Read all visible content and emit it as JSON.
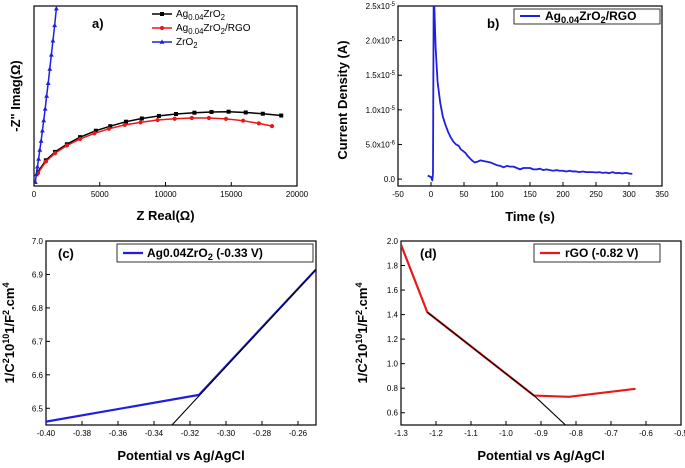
{
  "chart_data": [
    {
      "id": "a",
      "type": "line",
      "panel_label": "a)",
      "xlabel": "Z Real(Ω)",
      "ylabel": "-Z\" Imag(Ω)",
      "xlim": [
        0,
        20000
      ],
      "ylim": [
        0,
        14000
      ],
      "xticks": [
        0,
        5000,
        10000,
        15000,
        20000
      ],
      "xtick_labels": [
        "0",
        "5000",
        "10000",
        "15000",
        "20000"
      ],
      "legend": "top-right",
      "series": [
        {
          "name": "Ag0.04ZrO2",
          "base": "Ag",
          "sub": "0.04",
          "mid": "ZrO",
          "sub2": "2",
          "tail": "",
          "color": "#000000",
          "marker": "square",
          "points": [
            [
              300,
              1100
            ],
            [
              900,
              2000
            ],
            [
              1600,
              2650
            ],
            [
              2500,
              3250
            ],
            [
              3500,
              3800
            ],
            [
              4700,
              4300
            ],
            [
              5800,
              4650
            ],
            [
              7000,
              5000
            ],
            [
              8200,
              5250
            ],
            [
              9500,
              5450
            ],
            [
              10800,
              5600
            ],
            [
              12200,
              5700
            ],
            [
              13500,
              5760
            ],
            [
              14800,
              5780
            ],
            [
              16100,
              5720
            ],
            [
              17400,
              5620
            ],
            [
              18800,
              5480
            ]
          ]
        },
        {
          "name": "Ag0.04ZrO2/RGO",
          "base": "Ag",
          "sub": "0.04",
          "mid": "ZrO",
          "sub2": "2",
          "tail": "/RGO",
          "color": "#e8191b",
          "marker": "circle",
          "points": [
            [
              300,
              1000
            ],
            [
              900,
              1900
            ],
            [
              1600,
              2550
            ],
            [
              2500,
              3150
            ],
            [
              3500,
              3650
            ],
            [
              4600,
              4100
            ],
            [
              5700,
              4450
            ],
            [
              6900,
              4750
            ],
            [
              8100,
              4950
            ],
            [
              9400,
              5130
            ],
            [
              10700,
              5230
            ],
            [
              12000,
              5290
            ],
            [
              13300,
              5290
            ],
            [
              14600,
              5220
            ],
            [
              15900,
              5080
            ],
            [
              17100,
              4870
            ],
            [
              18100,
              4660
            ]
          ]
        },
        {
          "name": "ZrO2",
          "base": "ZrO",
          "sub": "2",
          "mid": "",
          "sub2": "",
          "tail": "",
          "color": "#1f1fe0",
          "marker": "triangle",
          "points": [
            [
              100,
              300
            ],
            [
              180,
              900
            ],
            [
              260,
              1500
            ],
            [
              350,
              2100
            ],
            [
              440,
              2800
            ],
            [
              540,
              3500
            ],
            [
              640,
              4300
            ],
            [
              740,
              5100
            ],
            [
              850,
              6000
            ],
            [
              960,
              7000
            ],
            [
              1080,
              8000
            ],
            [
              1200,
              9100
            ],
            [
              1320,
              10200
            ],
            [
              1440,
              11300
            ],
            [
              1570,
              12500
            ],
            [
              1700,
              13800
            ]
          ]
        }
      ]
    },
    {
      "id": "b",
      "type": "line",
      "panel_label": "b)",
      "xlabel": "Time (s)",
      "ylabel": "Current Density (A)",
      "xlim": [
        -50,
        350
      ],
      "ylim": [
        -1e-06,
        2.5e-05
      ],
      "xticks": [
        -50,
        0,
        50,
        100,
        150,
        200,
        250,
        300,
        350
      ],
      "xtick_labels": [
        "-50",
        "0",
        "50",
        "100",
        "150",
        "200",
        "250",
        "300",
        "350"
      ],
      "yticks": [
        0,
        5e-06,
        1e-05,
        1.5e-05,
        2e-05,
        2.5e-05
      ],
      "ytick_labels": [
        "0.0",
        "5.0x10-6",
        "1.0x10-5",
        "1.5x10-5",
        "2.0x10-5",
        "2.5x10-5"
      ],
      "legend": "top-right",
      "series": [
        {
          "name": "Ag0.04ZrO2/RGO",
          "base": "Ag",
          "sub": "0.04",
          "mid": "ZrO",
          "sub2": "2",
          "tail": "/RGO",
          "color": "#1f1fe0",
          "points": [
            [
              -5,
              5e-07
            ],
            [
              0,
              3e-07
            ],
            [
              2,
              -2e-07
            ],
            [
              3,
              8e-07
            ],
            [
              4,
              2.5e-05
            ],
            [
              5,
              2.5e-05
            ],
            [
              7,
              1.9e-05
            ],
            [
              10,
              1.4e-05
            ],
            [
              14,
              1.1e-05
            ],
            [
              18,
              9e-06
            ],
            [
              22,
              7.8e-06
            ],
            [
              26,
              6.8e-06
            ],
            [
              30,
              6e-06
            ],
            [
              34,
              5.4e-06
            ],
            [
              38,
              5e-06
            ],
            [
              42,
              4.8e-06
            ],
            [
              45,
              4.3e-06
            ],
            [
              48,
              4.1e-06
            ],
            [
              52,
              3.8e-06
            ],
            [
              55,
              3.4e-06
            ],
            [
              58,
              3.1e-06
            ],
            [
              62,
              2.7e-06
            ],
            [
              66,
              2.4e-06
            ],
            [
              70,
              2.5e-06
            ],
            [
              75,
              2.7e-06
            ],
            [
              80,
              2.6e-06
            ],
            [
              85,
              2.5e-06
            ],
            [
              90,
              2.4e-06
            ],
            [
              95,
              2.2e-06
            ],
            [
              100,
              2e-06
            ],
            [
              105,
              1.9e-06
            ],
            [
              110,
              1.7e-06
            ],
            [
              115,
              1.9e-06
            ],
            [
              120,
              1.8e-06
            ],
            [
              125,
              1.8e-06
            ],
            [
              130,
              1.6e-06
            ],
            [
              135,
              1.4e-06
            ],
            [
              140,
              1.6e-06
            ],
            [
              145,
              1.6e-06
            ],
            [
              150,
              1.6e-06
            ],
            [
              155,
              1.4e-06
            ],
            [
              160,
              1.4e-06
            ],
            [
              165,
              1.5e-06
            ],
            [
              170,
              1.3e-06
            ],
            [
              175,
              1.4e-06
            ],
            [
              180,
              1.3e-06
            ],
            [
              185,
              1.2e-06
            ],
            [
              190,
              1.3e-06
            ],
            [
              195,
              1.2e-06
            ],
            [
              200,
              1.2e-06
            ],
            [
              205,
              1.1e-06
            ],
            [
              210,
              1.2e-06
            ],
            [
              215,
              1.1e-06
            ],
            [
              220,
              1.1e-06
            ],
            [
              225,
              1e-06
            ],
            [
              230,
              1.1e-06
            ],
            [
              235,
              1e-06
            ],
            [
              240,
              1e-06
            ],
            [
              245,
              1e-06
            ],
            [
              250,
              9.5e-07
            ],
            [
              255,
              1e-06
            ],
            [
              260,
              9e-07
            ],
            [
              265,
              9.5e-07
            ],
            [
              270,
              8.5e-07
            ],
            [
              275,
              1e-06
            ],
            [
              280,
              8.5e-07
            ],
            [
              285,
              9e-07
            ],
            [
              290,
              8e-07
            ],
            [
              295,
              9e-07
            ],
            [
              300,
              8e-07
            ],
            [
              305,
              7.5e-07
            ]
          ]
        }
      ]
    },
    {
      "id": "c",
      "type": "line",
      "panel_label": "(c)",
      "xlabel": "Potential vs Ag/AgCl",
      "ylabel": "1/C2 1010 1/F2.cm4",
      "xlim": [
        -0.4,
        -0.25
      ],
      "ylim": [
        6.45,
        7.0
      ],
      "xticks": [
        -0.4,
        -0.38,
        -0.36,
        -0.34,
        -0.32,
        -0.3,
        -0.28,
        -0.26
      ],
      "xtick_labels": [
        "-0.40",
        "-0.38",
        "-0.36",
        "-0.34",
        "-0.32",
        "-0.30",
        "-0.28",
        "-0.26"
      ],
      "yticks": [
        6.5,
        6.6,
        6.7,
        6.8,
        6.9,
        7.0
      ],
      "ytick_labels": [
        "6.5",
        "6.6",
        "6.7",
        "6.8",
        "6.9",
        "7.0"
      ],
      "legend": "top-right",
      "series": [
        {
          "name": "Ag0.04ZrO2 (-0.33 V)",
          "base": "Ag0.04ZrO",
          "sub": "2",
          "mid": " (-0.33 V)",
          "sub2": "",
          "tail": "",
          "color": "#1f1fe0",
          "points": [
            [
              -0.4,
              6.46
            ],
            [
              -0.315,
              6.54
            ],
            [
              -0.25,
              6.915
            ]
          ]
        },
        {
          "name": "fit",
          "color": "#000000",
          "legend": false,
          "points": [
            [
              -0.33,
              6.45
            ],
            [
              -0.3145,
              6.54
            ],
            [
              -0.25,
              6.915
            ]
          ]
        }
      ]
    },
    {
      "id": "d",
      "type": "line",
      "panel_label": "(d)",
      "xlabel": "Potential vs Ag/AgCl",
      "ylabel": "1/C2 1010 1/F2.cm4",
      "xlim": [
        -1.3,
        -0.5
      ],
      "ylim": [
        0.5,
        2.0
      ],
      "xticks": [
        -1.3,
        -1.2,
        -1.1,
        -1.0,
        -0.9,
        -0.8,
        -0.7,
        -0.6,
        -0.5
      ],
      "xtick_labels": [
        "-1.3",
        "-1.2",
        "-1.1",
        "-1.0",
        "-0.9",
        "-0.8",
        "-0.7",
        "-0.6",
        "-0.5"
      ],
      "yticks": [
        0.6,
        0.8,
        1.0,
        1.2,
        1.4,
        1.6,
        1.8,
        2.0
      ],
      "ytick_labels": [
        "0.6",
        "0.8",
        "1.0",
        "1.2",
        "1.4",
        "1.6",
        "1.8",
        "2.0"
      ],
      "legend": "top-right",
      "series": [
        {
          "name": "rGO (-0.82 V)",
          "base": "rGO (-0.82 V)",
          "sub": "",
          "mid": "",
          "sub2": "",
          "tail": "",
          "color": "#e8191b",
          "points": [
            [
              -1.3,
              1.97
            ],
            [
              -1.225,
              1.42
            ],
            [
              -0.92,
              0.74
            ],
            [
              -0.82,
              0.73
            ],
            [
              -0.63,
              0.795
            ]
          ]
        },
        {
          "name": "fit",
          "color": "#000000",
          "legend": false,
          "points": [
            [
              -1.225,
              1.42
            ],
            [
              -0.92,
              0.74
            ],
            [
              -0.83,
              0.5
            ]
          ]
        }
      ]
    }
  ]
}
